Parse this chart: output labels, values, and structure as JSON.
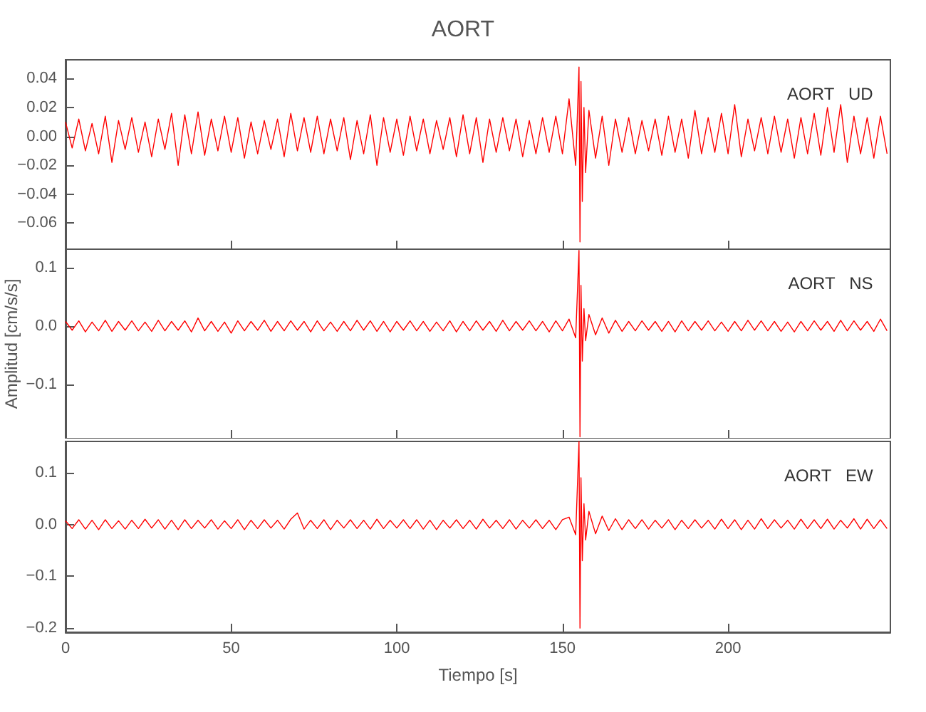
{
  "chart_data": [
    {
      "type": "line",
      "title": "AORT",
      "annotations": [
        "AORT   UD"
      ],
      "tick_labels": "y",
      "grid": false,
      "xlim": [
        0,
        249
      ],
      "xticks": [
        0,
        50,
        100,
        150,
        200
      ],
      "ylim": [
        -0.078,
        0.053
      ],
      "yticks": [
        {
          "value": -0.06,
          "label": "−0.06"
        },
        {
          "value": -0.04,
          "label": "−0.04"
        },
        {
          "value": -0.02,
          "label": "−0.02"
        },
        {
          "value": 0,
          "label": "0.00"
        },
        0.02,
        0.04
      ],
      "series": [
        {
          "color": "#ff0000",
          "x": [
            0,
            2,
            4,
            6,
            8,
            10,
            12,
            14,
            16,
            18,
            20,
            22,
            24,
            26,
            28,
            30,
            32,
            34,
            36,
            38,
            40,
            42,
            44,
            46,
            48,
            50,
            52,
            54,
            56,
            58,
            60,
            62,
            64,
            66,
            68,
            70,
            72,
            74,
            76,
            78,
            80,
            82,
            84,
            86,
            88,
            90,
            92,
            94,
            96,
            98,
            100,
            102,
            104,
            106,
            108,
            110,
            112,
            114,
            116,
            118,
            120,
            122,
            124,
            126,
            128,
            130,
            132,
            134,
            136,
            138,
            140,
            142,
            144,
            146,
            148,
            150,
            152,
            154,
            155,
            155.3,
            155.6,
            156,
            156.5,
            157,
            158,
            160,
            162,
            164,
            166,
            168,
            170,
            172,
            174,
            176,
            178,
            180,
            182,
            184,
            186,
            188,
            190,
            192,
            194,
            196,
            198,
            200,
            202,
            204,
            206,
            208,
            210,
            212,
            214,
            216,
            218,
            220,
            222,
            224,
            226,
            228,
            230,
            232,
            234,
            236,
            238,
            240,
            242,
            244,
            246,
            248
          ],
          "values": [
            0.01,
            -0.008,
            0.012,
            -0.01,
            0.009,
            -0.012,
            0.014,
            -0.018,
            0.011,
            -0.009,
            0.013,
            -0.011,
            0.01,
            -0.014,
            0.012,
            -0.009,
            0.016,
            -0.02,
            0.015,
            -0.012,
            0.017,
            -0.013,
            0.012,
            -0.01,
            0.014,
            -0.011,
            0.013,
            -0.015,
            0.01,
            -0.012,
            0.011,
            -0.009,
            0.012,
            -0.014,
            0.016,
            -0.01,
            0.013,
            -0.011,
            0.014,
            -0.012,
            0.012,
            -0.01,
            0.013,
            -0.016,
            0.011,
            -0.012,
            0.015,
            -0.02,
            0.013,
            -0.011,
            0.012,
            -0.013,
            0.014,
            -0.01,
            0.012,
            -0.012,
            0.011,
            -0.009,
            0.013,
            -0.014,
            0.015,
            -0.012,
            0.013,
            -0.018,
            0.012,
            -0.011,
            0.013,
            -0.01,
            0.012,
            -0.014,
            0.011,
            -0.012,
            0.013,
            -0.011,
            0.014,
            -0.012,
            0.026,
            -0.02,
            0.048,
            -0.073,
            0.038,
            -0.045,
            0.02,
            -0.025,
            0.018,
            -0.015,
            0.014,
            -0.02,
            0.012,
            -0.011,
            0.013,
            -0.012,
            0.011,
            -0.01,
            0.012,
            -0.013,
            0.014,
            -0.011,
            0.012,
            -0.015,
            0.018,
            -0.012,
            0.013,
            -0.011,
            0.016,
            -0.012,
            0.022,
            -0.014,
            0.012,
            -0.01,
            0.013,
            -0.012,
            0.014,
            -0.011,
            0.012,
            -0.015,
            0.013,
            -0.012,
            0.016,
            -0.013,
            0.02,
            -0.011,
            0.022,
            -0.018,
            0.014,
            -0.012,
            0.013,
            -0.015,
            0.014,
            -0.012
          ]
        }
      ]
    },
    {
      "type": "line",
      "ylabel": "Amplitud [cm/s/s]",
      "annotations": [
        "AORT   NS"
      ],
      "tick_labels": "y",
      "grid": false,
      "xlim": [
        0,
        249
      ],
      "xticks": [
        0,
        50,
        100,
        150,
        200
      ],
      "ylim": [
        -0.193,
        0.132
      ],
      "yticks": [
        {
          "value": -0.1,
          "label": "−0.1"
        },
        {
          "value": 0,
          "label": "0.0"
        },
        0.1
      ],
      "series": [
        {
          "color": "#ff0000",
          "x": [
            0,
            2,
            4,
            6,
            8,
            10,
            12,
            14,
            16,
            18,
            20,
            22,
            24,
            26,
            28,
            30,
            32,
            34,
            36,
            38,
            40,
            42,
            44,
            46,
            48,
            50,
            52,
            54,
            56,
            58,
            60,
            62,
            64,
            66,
            68,
            70,
            72,
            74,
            76,
            78,
            80,
            82,
            84,
            86,
            88,
            90,
            92,
            94,
            96,
            98,
            100,
            102,
            104,
            106,
            108,
            110,
            112,
            114,
            116,
            118,
            120,
            122,
            124,
            126,
            128,
            130,
            132,
            134,
            136,
            138,
            140,
            142,
            144,
            146,
            148,
            150,
            152,
            154,
            155,
            155.3,
            155.6,
            156,
            156.5,
            157,
            158,
            160,
            162,
            164,
            166,
            168,
            170,
            172,
            174,
            176,
            178,
            180,
            182,
            184,
            186,
            188,
            190,
            192,
            194,
            196,
            198,
            200,
            202,
            204,
            206,
            208,
            210,
            212,
            214,
            216,
            218,
            220,
            222,
            224,
            226,
            228,
            230,
            232,
            234,
            236,
            238,
            240,
            242,
            244,
            246,
            248
          ],
          "values": [
            0.008,
            -0.007,
            0.009,
            -0.01,
            0.007,
            -0.008,
            0.01,
            -0.009,
            0.008,
            -0.007,
            0.009,
            -0.008,
            0.007,
            -0.009,
            0.01,
            -0.008,
            0.008,
            -0.007,
            0.009,
            -0.01,
            0.014,
            -0.008,
            0.008,
            -0.009,
            0.007,
            -0.012,
            0.009,
            -0.008,
            0.008,
            -0.007,
            0.01,
            -0.009,
            0.008,
            -0.008,
            0.009,
            -0.007,
            0.008,
            -0.01,
            0.009,
            -0.008,
            0.007,
            -0.009,
            0.008,
            -0.008,
            0.01,
            -0.007,
            0.009,
            -0.009,
            0.008,
            -0.01,
            0.008,
            -0.007,
            0.009,
            -0.008,
            0.008,
            -0.009,
            0.007,
            -0.008,
            0.009,
            -0.01,
            0.008,
            -0.008,
            0.009,
            -0.007,
            0.008,
            -0.009,
            0.01,
            -0.008,
            0.008,
            -0.007,
            0.009,
            -0.008,
            0.008,
            -0.01,
            0.009,
            -0.008,
            0.012,
            -0.02,
            0.13,
            -0.19,
            0.07,
            -0.06,
            0.03,
            -0.025,
            0.02,
            -0.015,
            0.014,
            -0.012,
            0.01,
            -0.009,
            0.008,
            -0.008,
            0.009,
            -0.007,
            0.008,
            -0.009,
            0.008,
            -0.01,
            0.009,
            -0.008,
            0.008,
            -0.007,
            0.009,
            -0.008,
            0.007,
            -0.009,
            0.008,
            -0.008,
            0.01,
            -0.007,
            0.009,
            -0.008,
            0.008,
            -0.009,
            0.007,
            -0.01,
            0.008,
            -0.008,
            0.009,
            -0.007,
            0.008,
            -0.009,
            0.01,
            -0.008,
            0.009,
            -0.007,
            0.008,
            -0.009,
            0.012,
            -0.008
          ]
        }
      ]
    },
    {
      "type": "line",
      "xlabel": "Tiempo [s]",
      "annotations": [
        "AORT   EW"
      ],
      "grid": false,
      "xlim": [
        0,
        249
      ],
      "xticks": [
        0,
        50,
        100,
        150,
        200
      ],
      "ylim": [
        -0.208,
        0.16
      ],
      "yticks": [
        {
          "value": -0.2,
          "label": "−0.2"
        },
        {
          "value": -0.1,
          "label": "−0.1"
        },
        {
          "value": 0,
          "label": "0.0"
        },
        0.1
      ],
      "series": [
        {
          "color": "#ff0000",
          "x": [
            0,
            2,
            4,
            6,
            8,
            10,
            12,
            14,
            16,
            18,
            20,
            22,
            24,
            26,
            28,
            30,
            32,
            34,
            36,
            38,
            40,
            42,
            44,
            46,
            48,
            50,
            52,
            54,
            56,
            58,
            60,
            62,
            64,
            66,
            68,
            70,
            72,
            74,
            76,
            78,
            80,
            82,
            84,
            86,
            88,
            90,
            92,
            94,
            96,
            98,
            100,
            102,
            104,
            106,
            108,
            110,
            112,
            114,
            116,
            118,
            120,
            122,
            124,
            126,
            128,
            130,
            132,
            134,
            136,
            138,
            140,
            142,
            144,
            146,
            148,
            150,
            152,
            154,
            155,
            155.3,
            155.6,
            156,
            156.5,
            157,
            158,
            160,
            162,
            164,
            166,
            168,
            170,
            172,
            174,
            176,
            178,
            180,
            182,
            184,
            186,
            188,
            190,
            192,
            194,
            196,
            198,
            200,
            202,
            204,
            206,
            208,
            210,
            212,
            214,
            216,
            218,
            220,
            222,
            224,
            226,
            228,
            230,
            232,
            234,
            236,
            238,
            240,
            242,
            244,
            246,
            248
          ],
          "values": [
            0.007,
            -0.008,
            0.009,
            -0.009,
            0.008,
            -0.01,
            0.009,
            -0.008,
            0.007,
            -0.009,
            0.008,
            -0.008,
            0.01,
            -0.007,
            0.009,
            -0.009,
            0.008,
            -0.01,
            0.009,
            -0.008,
            0.008,
            -0.007,
            0.009,
            -0.009,
            0.007,
            -0.008,
            0.009,
            -0.01,
            0.008,
            -0.008,
            0.009,
            -0.007,
            0.008,
            -0.009,
            0.01,
            0.022,
            -0.009,
            0.008,
            -0.008,
            0.009,
            -0.01,
            0.008,
            -0.007,
            0.009,
            -0.008,
            0.008,
            -0.009,
            0.01,
            -0.008,
            0.008,
            -0.007,
            0.009,
            -0.008,
            0.009,
            -0.009,
            0.008,
            -0.01,
            0.008,
            -0.007,
            0.009,
            -0.008,
            0.008,
            -0.009,
            0.01,
            -0.007,
            0.008,
            -0.008,
            0.009,
            -0.009,
            0.008,
            -0.007,
            0.009,
            -0.008,
            0.008,
            -0.01,
            0.009,
            0.014,
            -0.02,
            0.16,
            -0.2,
            0.09,
            -0.07,
            0.04,
            -0.03,
            0.025,
            -0.018,
            0.016,
            -0.012,
            0.011,
            -0.01,
            0.009,
            -0.008,
            0.009,
            -0.009,
            0.008,
            -0.007,
            0.009,
            -0.01,
            0.008,
            -0.008,
            0.009,
            -0.007,
            0.008,
            -0.009,
            0.01,
            -0.008,
            0.009,
            -0.01,
            0.008,
            -0.009,
            0.011,
            -0.008,
            0.009,
            -0.007,
            0.008,
            -0.009,
            0.01,
            -0.008,
            0.009,
            -0.008,
            0.01,
            -0.009,
            0.008,
            -0.007,
            0.011,
            -0.009,
            0.01,
            -0.008,
            0.009,
            -0.008
          ]
        }
      ]
    }
  ]
}
